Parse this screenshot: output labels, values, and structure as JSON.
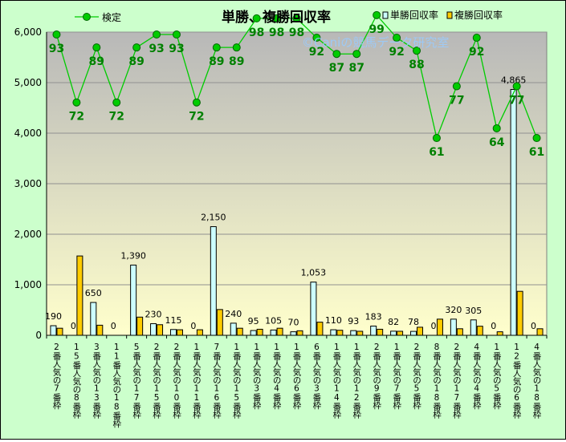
{
  "chart_data": {
    "type": "bar",
    "title": "単勝、複勝回収率",
    "watermark": "©Caniの競馬データ研究室",
    "categories": [
      "2番人気の7番枠",
      "15番人気の8番枠",
      "3番人気の13番枠",
      "11番人気の18番枠",
      "5番人気の17番枠",
      "2番人気の15番枠",
      "2番人気の10番枠",
      "1番人気の11番枠",
      "7番人気の16番枠",
      "1番人気の15番枠",
      "1番人気の3番枠",
      "1番人気の4番枠",
      "1番人気の6番枠",
      "6番人気の3番枠",
      "1番人気の14番枠",
      "1番人気の12番枠",
      "2番人気の9番枠",
      "1番人気の7番枠",
      "2番人気の5番枠",
      "8番人気の18番枠",
      "2番人気の17番枠",
      "4番人気の4番枠",
      "1番人気の5番枠",
      "12番人気の6番枠",
      "4番人気の18番枠"
    ],
    "ylim": [
      0,
      6000
    ],
    "yticks": [
      "0",
      "1,000",
      "2,000",
      "3,000",
      "4,000",
      "5,000",
      "6,000"
    ],
    "yticks_values": [
      0,
      1000,
      2000,
      3000,
      4000,
      5000,
      6000
    ],
    "grid": true,
    "legend_position": "top",
    "series": [
      {
        "name": "単勝回収率",
        "kind": "bar",
        "color": "#ccffff",
        "values": [
          190,
          0,
          650,
          0,
          1390,
          230,
          115,
          0,
          2150,
          240,
          95,
          105,
          70,
          1053,
          110,
          93,
          183,
          82,
          78,
          0,
          320,
          305,
          0,
          4865,
          0
        ],
        "labels": [
          "190",
          "0",
          "650",
          "0",
          "1,390",
          "230",
          "115",
          "0",
          "2,150",
          "240",
          "95",
          "105",
          "70",
          "1,053",
          "110",
          "93",
          "183",
          "82",
          "78",
          "0",
          "320",
          "305",
          "0",
          "4,865",
          "0"
        ]
      },
      {
        "name": "複勝回収率",
        "kind": "bar",
        "color": "#ffcc00",
        "values": [
          140,
          1570,
          200,
          0,
          360,
          210,
          110,
          110,
          510,
          140,
          120,
          140,
          90,
          260,
          100,
          80,
          120,
          80,
          160,
          320,
          130,
          180,
          70,
          870,
          130
        ]
      },
      {
        "name": "検定",
        "kind": "line",
        "color": "#00cc00",
        "values": [
          93,
          72,
          89,
          72,
          89,
          93,
          93,
          72,
          89,
          89,
          98,
          98,
          98,
          92,
          87,
          87,
          99,
          92,
          88,
          61,
          77,
          92,
          64,
          77,
          61
        ]
      }
    ],
    "line_scale_note": "検定 values are plotted against the same 0–6,000 axis at 64x scale",
    "line_scale_factor": 64
  }
}
